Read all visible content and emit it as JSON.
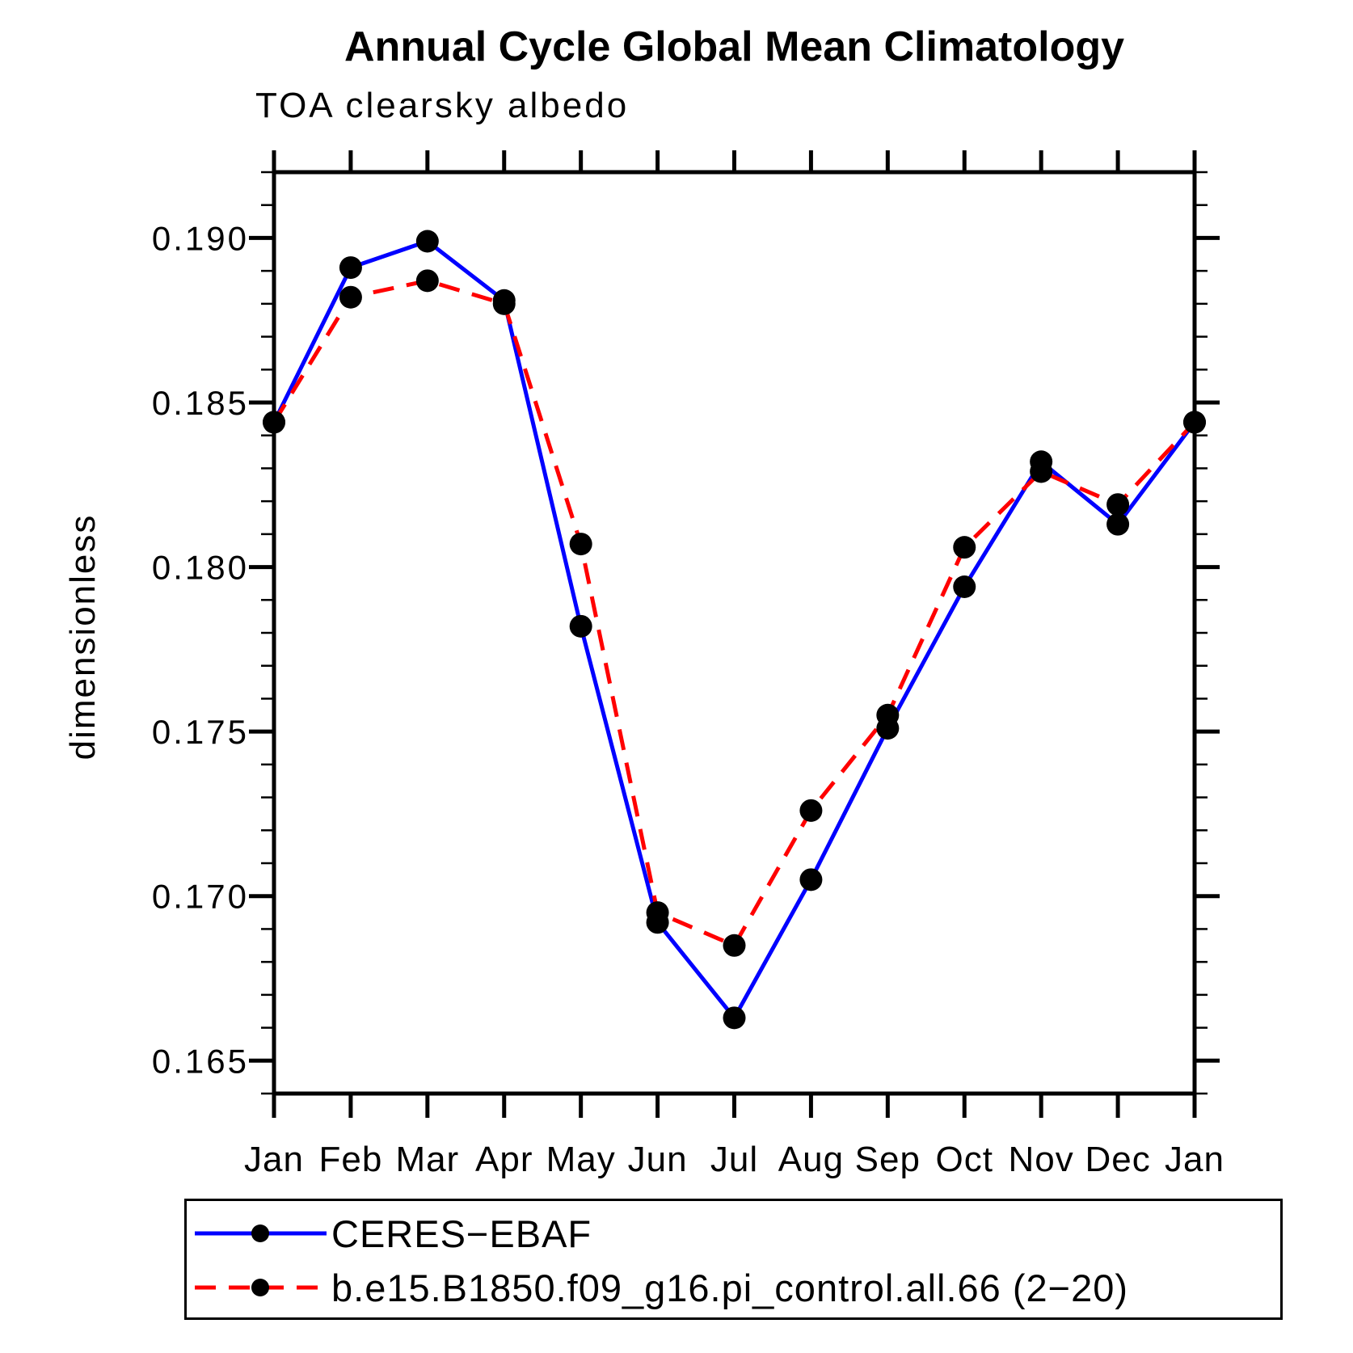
{
  "chart_data": {
    "type": "line",
    "title": "Annual Cycle Global Mean Climatology",
    "subtitle": "TOA clearsky albedo",
    "ylabel": "dimensionless",
    "xlabel": "",
    "categories": [
      "Jan",
      "Feb",
      "Mar",
      "Apr",
      "May",
      "Jun",
      "Jul",
      "Aug",
      "Sep",
      "Oct",
      "Nov",
      "Dec",
      "Jan"
    ],
    "series": [
      {
        "name": "CERES−EBAF",
        "color": "#0000ff",
        "style": "solid",
        "marker": "circle",
        "marker_color": "#000000",
        "values": [
          0.1844,
          0.1891,
          0.1899,
          0.1881,
          0.1782,
          0.1692,
          0.1663,
          0.1705,
          0.1751,
          0.1794,
          0.1832,
          0.1813,
          0.1844
        ]
      },
      {
        "name": "b.e15.B1850.f09_g16.pi_control.all.66 (2−20)",
        "color": "#ff0000",
        "style": "dashed",
        "marker": "circle",
        "marker_color": "#000000",
        "values": [
          0.1844,
          0.1882,
          0.1887,
          0.188,
          0.1807,
          0.1695,
          0.1685,
          0.1726,
          0.1755,
          0.1806,
          0.1829,
          0.1819,
          0.1844
        ]
      }
    ],
    "ylim": [
      0.164,
      0.192
    ],
    "yticks_major": [
      0.165,
      0.17,
      0.175,
      0.18,
      0.185,
      0.19
    ],
    "ytick_labels": [
      "0.165",
      "0.170",
      "0.175",
      "0.180",
      "0.185",
      "0.190"
    ],
    "ytick_minor_step": 0.001,
    "grid": false,
    "legend_position": "bottom-left-box",
    "axis_color": "#000000",
    "line_width": 5
  }
}
